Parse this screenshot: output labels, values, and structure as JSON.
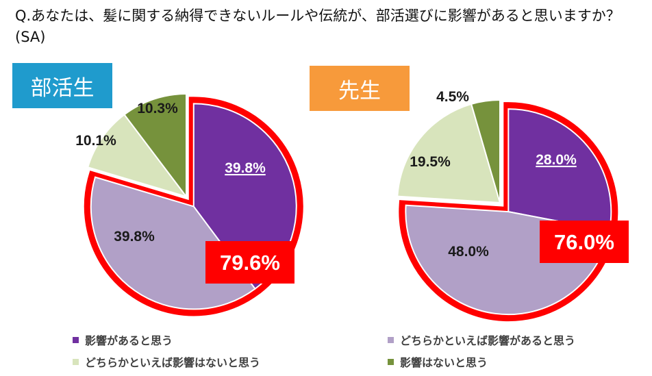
{
  "question": "Q.あなたは、髪に関する納得できないルールや伝統が、部活選びに影響があると思いますか？(SA)",
  "colors": {
    "affects": "#7030a0",
    "somewhat_affects": "#b1a0c7",
    "somewhat_not": "#d8e4bc",
    "not_affects": "#76923c",
    "highlight": "#ff0000"
  },
  "legend": [
    {
      "label": "影響があると思う",
      "color": "#7030a0"
    },
    {
      "label": "どちらかといえば影響があると思う",
      "color": "#b1a0c7"
    },
    {
      "label": "どちらかといえば影響はないと思う",
      "color": "#d8e4bc"
    },
    {
      "label": "影響はないと思う",
      "color": "#76923c"
    }
  ],
  "chart_data": [
    {
      "type": "pie",
      "title": "部活生",
      "title_color": "#1f9bcd",
      "categories": [
        "影響があると思う",
        "どちらかといえば影響があると思う",
        "どちらかといえば影響はないと思う",
        "影響はないと思う"
      ],
      "values": [
        39.8,
        39.8,
        10.1,
        10.3
      ],
      "labels": [
        "39.8%",
        "39.8%",
        "10.1%",
        "10.3%"
      ],
      "highlight_total": "79.6%"
    },
    {
      "type": "pie",
      "title": "先生",
      "title_color": "#f79a3b",
      "categories": [
        "影響があると思う",
        "どちらかといえば影響があると思う",
        "どちらかといえば影響はないと思う",
        "影響はないと思う"
      ],
      "values": [
        28.0,
        48.0,
        19.5,
        4.5
      ],
      "labels": [
        "28.0%",
        "48.0%",
        "19.5%",
        "4.5%"
      ],
      "highlight_total": "76.0%"
    }
  ]
}
